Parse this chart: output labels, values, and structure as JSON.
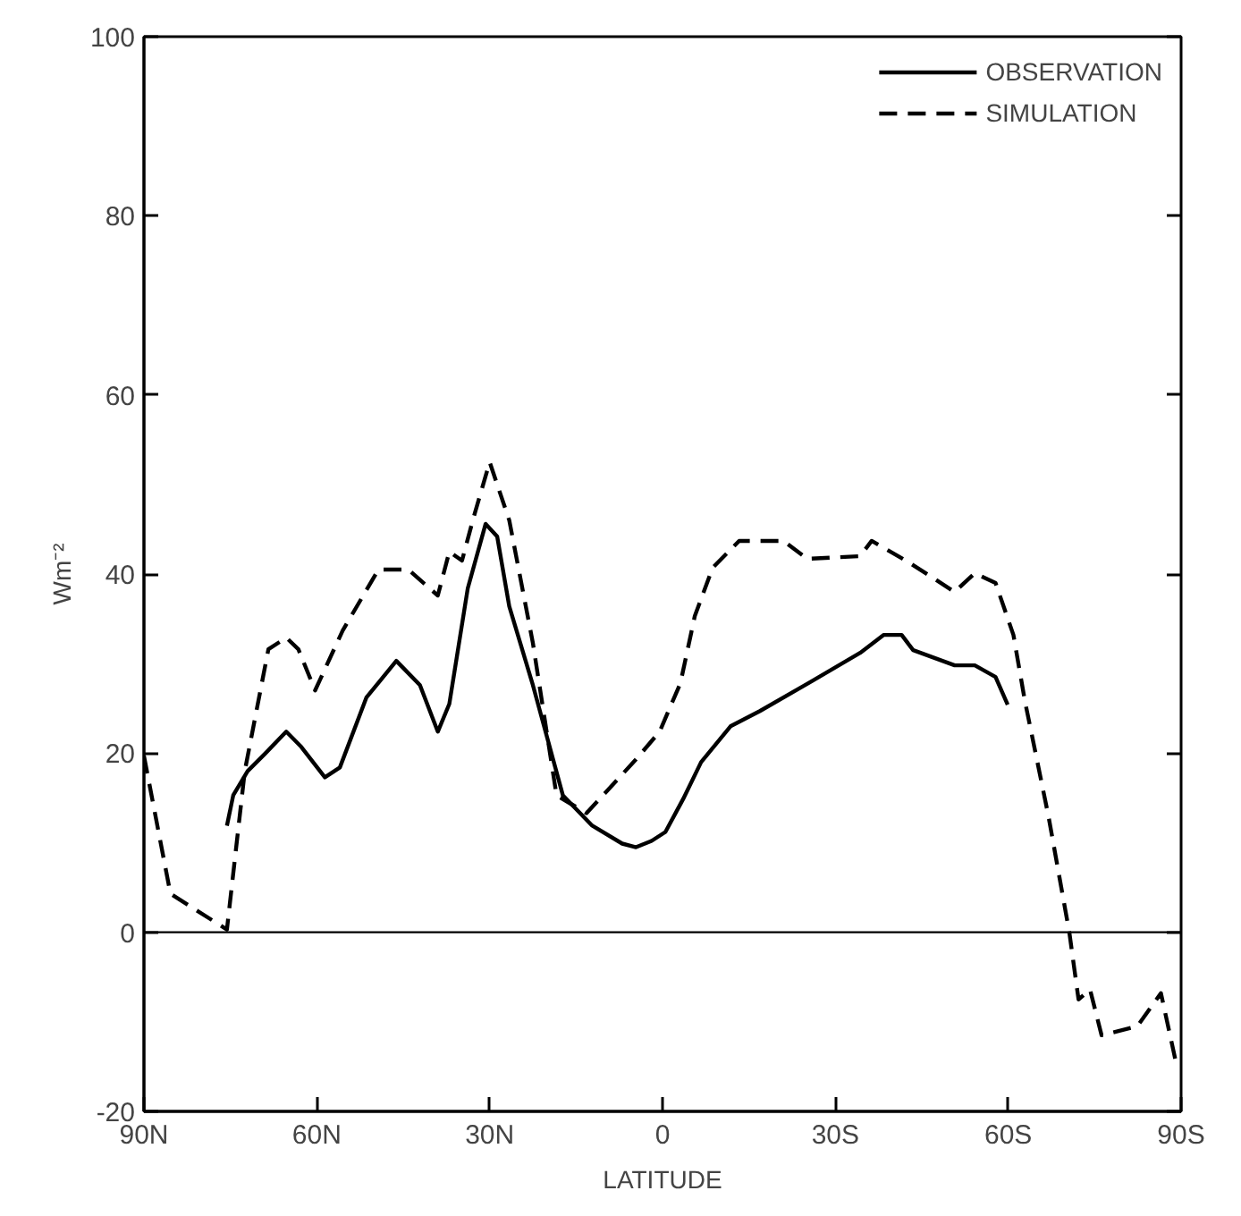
{
  "chart_data": {
    "type": "line",
    "xlabel": "LATITUDE",
    "ylabel": "Wm⁻²",
    "xlim": [
      90,
      -90
    ],
    "ylim": [
      -20,
      100
    ],
    "xticks": [
      {
        "value": 90,
        "label": "90N"
      },
      {
        "value": 60,
        "label": "60N"
      },
      {
        "value": 30,
        "label": "30N"
      },
      {
        "value": 0,
        "label": "0"
      },
      {
        "value": -30,
        "label": "30S"
      },
      {
        "value": -60,
        "label": "60S"
      },
      {
        "value": -90,
        "label": "90S"
      }
    ],
    "yticks": [
      -20,
      0,
      20,
      40,
      60,
      80,
      100
    ],
    "grid": false,
    "legend": "top right",
    "ref_lines": [
      {
        "axis": "y",
        "value": 0,
        "color": "#000000",
        "line_style": "solid"
      }
    ],
    "series": [
      {
        "name": "OBSERVATION",
        "color": "#000000",
        "line_style": "solid",
        "x": [
          75.6,
          74.5,
          72,
          68.9,
          65.3,
          62.7,
          58.6,
          56,
          51.4,
          46.2,
          42.1,
          39,
          37,
          33.8,
          30.7,
          28.7,
          26.6,
          22.5,
          17.3,
          12.2,
          7,
          4.6,
          1.9,
          -0.5,
          -3.6,
          -6.7,
          -11.8,
          -16.9,
          -26.1,
          -34.3,
          -38.4,
          -41.5,
          -43.5,
          -50.7,
          -54.2,
          -57.8,
          -59.9
        ],
        "values": [
          11.9,
          15.3,
          18,
          20,
          22.4,
          20.7,
          17.3,
          18.4,
          26.2,
          30.3,
          27.6,
          22.4,
          25.5,
          38.4,
          45.6,
          44.2,
          36.4,
          27.6,
          15.3,
          11.9,
          9.9,
          9.5,
          10.2,
          11.2,
          14.9,
          19,
          23,
          24.7,
          28.1,
          31.2,
          33.2,
          33.2,
          31.5,
          29.8,
          29.8,
          28.5,
          25.4
        ]
      },
      {
        "name": "SIMULATION",
        "color": "#000000",
        "line_style": "dashed",
        "x": [
          90,
          85.4,
          75.6,
          72.5,
          68.4,
          65.3,
          63.2,
          60.3,
          55.5,
          49.3,
          44.1,
          39,
          37,
          34.8,
          32.8,
          30,
          26.6,
          22.5,
          18.4,
          13.2,
          4.6,
          0.5,
          -3.1,
          -5.6,
          -8.7,
          -13.3,
          -21,
          -25.1,
          -34.3,
          -36.3,
          -42.5,
          -50.7,
          -54.2,
          -57.8,
          -60.9,
          -62.9,
          -67,
          -70.6,
          -72.2,
          -74.2,
          -76.2,
          -82.4,
          -86.5,
          -89,
          -90
        ],
        "values": [
          19.7,
          4.3,
          0.3,
          18,
          31.6,
          32.9,
          31.6,
          27,
          33.7,
          40.5,
          40.5,
          37.6,
          42.5,
          41.5,
          46.3,
          52.5,
          46,
          32.3,
          15.3,
          13.3,
          19.3,
          22.4,
          27.8,
          35.3,
          40.7,
          43.7,
          43.7,
          41.7,
          42,
          43.7,
          41.4,
          38,
          40.1,
          39,
          33.2,
          25.8,
          12.9,
          0,
          -7.5,
          -6.4,
          -11.5,
          -10.5,
          -6.8,
          -14.2,
          -15
        ]
      }
    ]
  }
}
